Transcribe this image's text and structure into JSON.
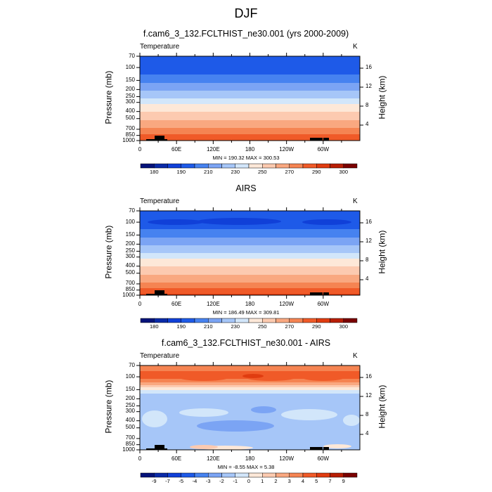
{
  "title": "DJF",
  "colors": [
    "#05137a",
    "#0a2aa8",
    "#1040d8",
    "#1e5ae8",
    "#4682f0",
    "#7ba4f4",
    "#a6c6f8",
    "#d2e6fa",
    "#fde8d8",
    "#fccab0",
    "#f9a880",
    "#f58452",
    "#f05a28",
    "#e03c10",
    "#b81e04",
    "#7a0000"
  ],
  "chart_data": [
    {
      "type": "heatmap",
      "title": "f.cam6_3_132.FCLTHIST_ne30.001 (yrs 2000-2009)",
      "left_label": "Temperature",
      "units": "K",
      "ylabel": "Pressure (mb)",
      "ylabel_right": "Height (km)",
      "xticks": [
        "0",
        "60E",
        "120E",
        "180",
        "120W",
        "60W"
      ],
      "yticks": [
        "70",
        "100",
        "150",
        "200",
        "250",
        "300",
        "400",
        "500",
        "700",
        "850",
        "1000"
      ],
      "yticks_right": [
        "16",
        "12",
        "8",
        "4"
      ],
      "stats": "MIN = 190.32  MAX = 300.53",
      "levels": [
        180,
        185,
        190,
        200,
        210,
        220,
        230,
        240,
        250,
        260,
        270,
        280,
        290,
        295,
        300
      ],
      "colorbar_labels": [
        "180",
        "190",
        "210",
        "230",
        "250",
        "270",
        "290",
        "300"
      ],
      "profile": {
        "p": [
          70,
          120,
          140,
          170,
          220,
          280,
          330,
          420,
          550,
          700,
          850,
          1000
        ],
        "t": [
          195,
          198,
          205,
          212,
          222,
          232,
          242,
          252,
          262,
          272,
          282,
          290
        ]
      }
    },
    {
      "type": "heatmap",
      "title": "AIRS",
      "left_label": "Temperature",
      "units": "K",
      "ylabel": "Pressure (mb)",
      "ylabel_right": "Height (km)",
      "xticks": [
        "0",
        "60E",
        "120E",
        "180",
        "120W",
        "60W"
      ],
      "yticks": [
        "70",
        "100",
        "150",
        "200",
        "250",
        "300",
        "400",
        "500",
        "700",
        "850",
        "1000"
      ],
      "yticks_right": [
        "16",
        "12",
        "8",
        "4"
      ],
      "stats": "MIN = 186.49  MAX = 309.81",
      "levels": [
        180,
        185,
        190,
        200,
        210,
        220,
        230,
        240,
        250,
        260,
        270,
        280,
        290,
        295,
        300
      ],
      "colorbar_labels": [
        "180",
        "190",
        "210",
        "230",
        "250",
        "270",
        "290",
        "300"
      ],
      "profile": {
        "p": [
          70,
          95,
          110,
          140,
          170,
          220,
          280,
          330,
          420,
          550,
          700,
          850,
          1000
        ],
        "t": [
          195,
          192,
          194,
          205,
          212,
          222,
          232,
          242,
          252,
          262,
          272,
          283,
          292
        ]
      }
    },
    {
      "type": "heatmap",
      "title": "f.cam6_3_132.FCLTHIST_ne30.001 - AIRS",
      "left_label": "Temperature",
      "units": "K",
      "ylabel": "Pressure (mb)",
      "ylabel_right": "Height (km)",
      "xticks": [
        "0",
        "60E",
        "120E",
        "180",
        "120W",
        "60W"
      ],
      "yticks": [
        "70",
        "100",
        "150",
        "200",
        "250",
        "300",
        "400",
        "500",
        "700",
        "850",
        "1000"
      ],
      "yticks_right": [
        "16",
        "12",
        "8",
        "4"
      ],
      "stats": "MIN =  -8.55  MAX =   5.38",
      "levels": [
        -9,
        -7,
        -5,
        -4,
        -3,
        -2,
        -1,
        0,
        1,
        2,
        3,
        4,
        5,
        7,
        9
      ],
      "colorbar_labels": [
        "-9",
        "-7",
        "-5",
        "-4",
        "-3",
        "-2",
        "-1",
        "0",
        "1",
        "2",
        "3",
        "4",
        "5",
        "7",
        "9"
      ],
      "profile": {
        "p": [
          70,
          100,
          125,
          145,
          160,
          180,
          1000
        ],
        "t": [
          3.5,
          4.5,
          2.5,
          0.5,
          -0.5,
          -1.5,
          -1.5
        ]
      }
    }
  ]
}
